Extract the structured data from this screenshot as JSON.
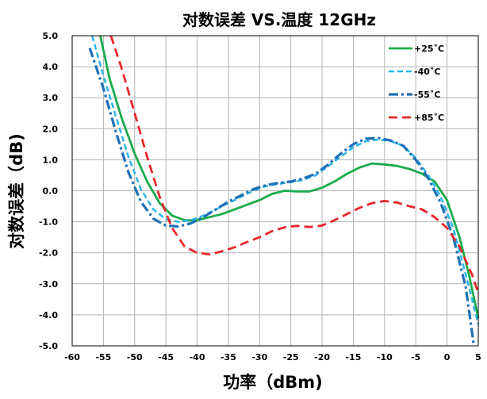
{
  "chart_data": {
    "type": "line",
    "title": "对数误差 VS.温度 12GHz",
    "xlabel": "功率（dBm)",
    "ylabel": "对数误差（dB)",
    "xlim": [
      -60,
      5
    ],
    "ylim": [
      -5.0,
      5.0
    ],
    "x_ticks": [
      "-60",
      "-55",
      "-50",
      "-45",
      "-40",
      "-35",
      "-30",
      "-25",
      "-20",
      "-15",
      "-10",
      "-5",
      "0",
      "5"
    ],
    "y_ticks": [
      "5.0",
      "4.0",
      "3.0",
      "2.0",
      "1.0",
      "0.0",
      "-1.0",
      "-2.0",
      "-3.0",
      "-4.0",
      "-5.0"
    ],
    "grid": true,
    "legend_position": "top-right",
    "series": [
      {
        "name": "+25˚C",
        "color": "#1aab4b",
        "dash": "solid",
        "points": [
          [
            -55.5,
            5.0
          ],
          [
            -54,
            3.6
          ],
          [
            -52,
            2.3
          ],
          [
            -50,
            1.2
          ],
          [
            -48,
            0.3
          ],
          [
            -46,
            -0.4
          ],
          [
            -44,
            -0.8
          ],
          [
            -42,
            -0.95
          ],
          [
            -40,
            -0.95
          ],
          [
            -38,
            -0.85
          ],
          [
            -36,
            -0.75
          ],
          [
            -34,
            -0.6
          ],
          [
            -32,
            -0.45
          ],
          [
            -30,
            -0.3
          ],
          [
            -28,
            -0.1
          ],
          [
            -26,
            0.0
          ],
          [
            -24,
            -0.02
          ],
          [
            -22,
            -0.02
          ],
          [
            -20,
            0.1
          ],
          [
            -18,
            0.3
          ],
          [
            -16,
            0.55
          ],
          [
            -14,
            0.75
          ],
          [
            -12,
            0.88
          ],
          [
            -10,
            0.85
          ],
          [
            -8,
            0.8
          ],
          [
            -6,
            0.7
          ],
          [
            -4,
            0.55
          ],
          [
            -2,
            0.3
          ],
          [
            0,
            -0.3
          ],
          [
            2,
            -1.5
          ],
          [
            3.5,
            -2.7
          ],
          [
            5,
            -4.1
          ]
        ]
      },
      {
        "name": "-40˚C",
        "color": "#29b6e8",
        "dash": "short-dash",
        "points": [
          [
            -56.8,
            5.0
          ],
          [
            -55,
            3.7
          ],
          [
            -53,
            2.4
          ],
          [
            -51,
            1.1
          ],
          [
            -49,
            0.05
          ],
          [
            -47,
            -0.6
          ],
          [
            -45,
            -0.92
          ],
          [
            -43,
            -1.0
          ],
          [
            -41,
            -0.95
          ],
          [
            -39,
            -0.8
          ],
          [
            -37,
            -0.6
          ],
          [
            -35,
            -0.4
          ],
          [
            -33,
            -0.2
          ],
          [
            -31,
            0.0
          ],
          [
            -29,
            0.15
          ],
          [
            -27,
            0.22
          ],
          [
            -25,
            0.28
          ],
          [
            -23,
            0.35
          ],
          [
            -21,
            0.5
          ],
          [
            -19,
            0.8
          ],
          [
            -17,
            1.1
          ],
          [
            -15,
            1.4
          ],
          [
            -13,
            1.6
          ],
          [
            -11,
            1.65
          ],
          [
            -9,
            1.6
          ],
          [
            -7,
            1.45
          ],
          [
            -5,
            1.05
          ],
          [
            -3,
            0.5
          ],
          [
            -1,
            -0.2
          ],
          [
            1,
            -1.2
          ],
          [
            3,
            -2.7
          ],
          [
            5,
            -4.3
          ]
        ]
      },
      {
        "name": "-55˚C",
        "color": "#1f6fb5",
        "dash": "dash-dot",
        "points": [
          [
            -57.2,
            4.6
          ],
          [
            -55,
            3.3
          ],
          [
            -53,
            1.9
          ],
          [
            -51,
            0.6
          ],
          [
            -49,
            -0.35
          ],
          [
            -47,
            -0.9
          ],
          [
            -45,
            -1.12
          ],
          [
            -43,
            -1.15
          ],
          [
            -41,
            -1.05
          ],
          [
            -39,
            -0.85
          ],
          [
            -37,
            -0.6
          ],
          [
            -35,
            -0.35
          ],
          [
            -33,
            -0.15
          ],
          [
            -31,
            0.05
          ],
          [
            -29,
            0.18
          ],
          [
            -27,
            0.25
          ],
          [
            -25,
            0.3
          ],
          [
            -23,
            0.4
          ],
          [
            -21,
            0.55
          ],
          [
            -19,
            0.85
          ],
          [
            -17,
            1.2
          ],
          [
            -15,
            1.5
          ],
          [
            -13,
            1.68
          ],
          [
            -11,
            1.7
          ],
          [
            -9,
            1.62
          ],
          [
            -7,
            1.45
          ],
          [
            -5,
            1.0
          ],
          [
            -3,
            0.4
          ],
          [
            -1,
            -0.4
          ],
          [
            1,
            -1.5
          ],
          [
            3,
            -3.1
          ],
          [
            4.3,
            -5.0
          ]
        ]
      },
      {
        "name": "+85˚C",
        "color": "#e8262a",
        "dash": "long-dash",
        "points": [
          [
            -53.8,
            5.0
          ],
          [
            -52,
            3.9
          ],
          [
            -50,
            2.5
          ],
          [
            -48,
            1.1
          ],
          [
            -46,
            -0.2
          ],
          [
            -44,
            -1.2
          ],
          [
            -42,
            -1.8
          ],
          [
            -40,
            -2.0
          ],
          [
            -38,
            -2.05
          ],
          [
            -36,
            -1.95
          ],
          [
            -34,
            -1.82
          ],
          [
            -32,
            -1.65
          ],
          [
            -30,
            -1.5
          ],
          [
            -28,
            -1.3
          ],
          [
            -26,
            -1.18
          ],
          [
            -24,
            -1.13
          ],
          [
            -22,
            -1.17
          ],
          [
            -20,
            -1.12
          ],
          [
            -18,
            -0.95
          ],
          [
            -16,
            -0.75
          ],
          [
            -14,
            -0.55
          ],
          [
            -12,
            -0.4
          ],
          [
            -10,
            -0.33
          ],
          [
            -8,
            -0.38
          ],
          [
            -6,
            -0.5
          ],
          [
            -4,
            -0.6
          ],
          [
            -2,
            -0.85
          ],
          [
            0,
            -1.2
          ],
          [
            2,
            -1.8
          ],
          [
            4,
            -2.7
          ],
          [
            5,
            -3.3
          ]
        ]
      }
    ]
  }
}
